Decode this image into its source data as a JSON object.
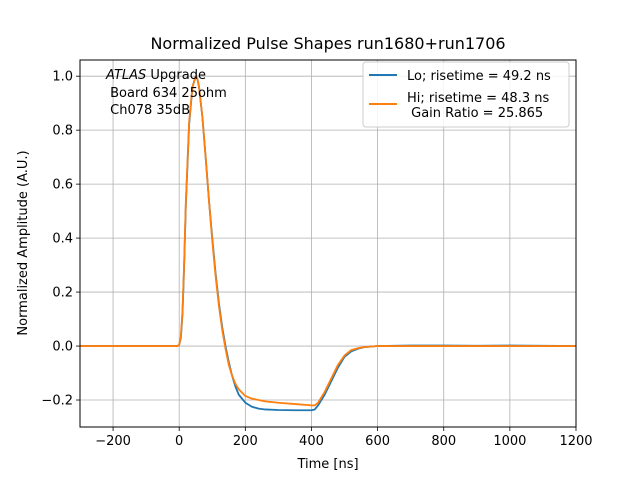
{
  "chart_data": {
    "type": "line",
    "title": "Normalized Pulse Shapes run1680+run1706",
    "xlabel": "Time [ns]",
    "ylabel": "Normalized Amplitude (A.U.)",
    "xlim": [
      -300,
      1200
    ],
    "ylim": [
      -0.3,
      1.06
    ],
    "xticks": [
      -200,
      0,
      200,
      400,
      600,
      800,
      1000,
      1200
    ],
    "yticks": [
      -0.2,
      0.0,
      0.2,
      0.4,
      0.6,
      0.8,
      1.0
    ],
    "xtick_labels": [
      "−200",
      "0",
      "200",
      "400",
      "600",
      "800",
      "1000",
      "1200"
    ],
    "ytick_labels": [
      "−0.2",
      "0.0",
      "0.2",
      "0.4",
      "0.6",
      "0.8",
      "1.0"
    ],
    "grid": true,
    "legend_position": "top-right",
    "annotation": {
      "atlas": "ATLAS",
      "upgrade": " Upgrade",
      "line2": " Board 634 25ohm",
      "line3": " Ch078 35dB"
    },
    "series": [
      {
        "name": "Lo; risetime = 49.2 ns",
        "color": "#1f77b4",
        "x": [
          -300,
          -100,
          -5,
          0,
          5,
          10,
          15,
          20,
          30,
          40,
          50,
          55,
          60,
          70,
          80,
          90,
          100,
          110,
          120,
          130,
          140,
          150,
          160,
          170,
          180,
          200,
          220,
          240,
          260,
          300,
          350,
          400,
          410,
          420,
          440,
          460,
          480,
          500,
          520,
          540,
          560,
          600,
          650,
          700,
          800,
          900,
          1000,
          1100,
          1200
        ],
        "y": [
          0,
          0,
          0,
          0.005,
          0.03,
          0.12,
          0.3,
          0.52,
          0.82,
          0.96,
          1.0,
          0.99,
          0.96,
          0.85,
          0.7,
          0.54,
          0.4,
          0.27,
          0.16,
          0.07,
          0.0,
          -0.06,
          -0.11,
          -0.15,
          -0.18,
          -0.21,
          -0.225,
          -0.232,
          -0.235,
          -0.237,
          -0.238,
          -0.238,
          -0.235,
          -0.22,
          -0.18,
          -0.13,
          -0.08,
          -0.04,
          -0.02,
          -0.01,
          -0.004,
          0.0,
          0.001,
          0.002,
          0.002,
          0.001,
          0.002,
          0.001,
          0.0
        ]
      },
      {
        "name": "Hi; risetime = 48.3 ns\n Gain Ratio = 25.865",
        "color": "#ff7f0e",
        "x": [
          -300,
          -100,
          -5,
          0,
          5,
          10,
          15,
          20,
          30,
          40,
          50,
          55,
          60,
          70,
          80,
          90,
          100,
          110,
          120,
          130,
          140,
          150,
          160,
          170,
          180,
          200,
          220,
          240,
          260,
          300,
          350,
          400,
          410,
          420,
          440,
          460,
          480,
          500,
          520,
          540,
          560,
          600,
          650,
          700,
          800,
          900,
          1000,
          1100,
          1200
        ],
        "y": [
          0,
          0,
          0,
          0.005,
          0.035,
          0.13,
          0.31,
          0.53,
          0.83,
          0.96,
          1.0,
          0.99,
          0.96,
          0.85,
          0.7,
          0.54,
          0.39,
          0.26,
          0.15,
          0.06,
          -0.01,
          -0.07,
          -0.11,
          -0.14,
          -0.16,
          -0.185,
          -0.195,
          -0.2,
          -0.205,
          -0.21,
          -0.215,
          -0.22,
          -0.22,
          -0.21,
          -0.17,
          -0.12,
          -0.07,
          -0.035,
          -0.015,
          -0.008,
          -0.004,
          0.0,
          0.0,
          0.0,
          0.0,
          0.0,
          0.0,
          0.0,
          0.0
        ]
      }
    ]
  }
}
